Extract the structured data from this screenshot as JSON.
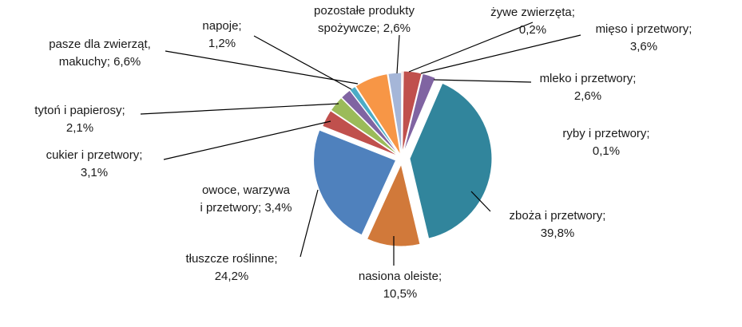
{
  "chart_data": {
    "type": "pie",
    "title": "",
    "slices": [
      {
        "label": "żywe zwierzęta",
        "value": 0.2,
        "value_text": "0,2%",
        "color": "#C0504D"
      },
      {
        "label": "mięso i przetwory",
        "value": 3.6,
        "value_text": "3,6%",
        "color": "#C0504D"
      },
      {
        "label": "mleko i przetwory",
        "value": 2.6,
        "value_text": "2,6%",
        "color": "#8064A2"
      },
      {
        "label": "ryby i przetwory",
        "value": 0.1,
        "value_text": "0,1%",
        "color": "#4BACC6"
      },
      {
        "label": "zboża i przetwory",
        "value": 39.8,
        "value_text": "39,8%",
        "color": "#31859C"
      },
      {
        "label": "nasiona oleiste",
        "value": 10.5,
        "value_text": "10,5%",
        "color": "#D1793A"
      },
      {
        "label": "tłuszcze roślinne",
        "value": 24.2,
        "value_text": "24,2%",
        "color": "#4F81BD"
      },
      {
        "label": "owoce, warzywa i przetwory",
        "value": 3.4,
        "value_text": "3,4%",
        "color": "#C0504D"
      },
      {
        "label": "cukier i przetwory",
        "value": 3.1,
        "value_text": "3,1%",
        "color": "#9BBB59"
      },
      {
        "label": "tytoń i papierosy",
        "value": 2.1,
        "value_text": "2,1%",
        "color": "#8064A2"
      },
      {
        "label": "napoje",
        "value": 1.2,
        "value_text": "1,2%",
        "color": "#4BACC6"
      },
      {
        "label": "pasze dla zwierząt, makuchy",
        "value": 6.6,
        "value_text": "6,6%",
        "color": "#F79646"
      },
      {
        "label": "pozostałe produkty spożywcze",
        "value": 2.6,
        "value_text": "2,6%",
        "color": "#A5B6D8"
      }
    ],
    "legend": "none",
    "label_texts": [
      [
        "żywe zwierzęta;",
        "0,2%"
      ],
      [
        "mięso i przetwory;",
        "3,6%"
      ],
      [
        "mleko i przetwory;",
        "2,6%"
      ],
      [
        "ryby i przetwory;",
        "0,1%"
      ],
      [
        "zboża i przetwory;",
        "39,8%"
      ],
      [
        "nasiona oleiste;",
        "10,5%"
      ],
      [
        "tłuszcze roślinne;",
        "24,2%"
      ],
      [
        "owoce, warzywa",
        "i przetwory; 3,4%"
      ],
      [
        "cukier i przetwory;",
        "3,1%"
      ],
      [
        "tytoń i papierosy;",
        "2,1%"
      ],
      [
        "napoje;",
        "1,2%"
      ],
      [
        "pasze dla zwierząt,",
        "makuchy; 6,6%"
      ],
      [
        "pozostałe produkty",
        "spożywcze; 2,6%"
      ]
    ]
  }
}
